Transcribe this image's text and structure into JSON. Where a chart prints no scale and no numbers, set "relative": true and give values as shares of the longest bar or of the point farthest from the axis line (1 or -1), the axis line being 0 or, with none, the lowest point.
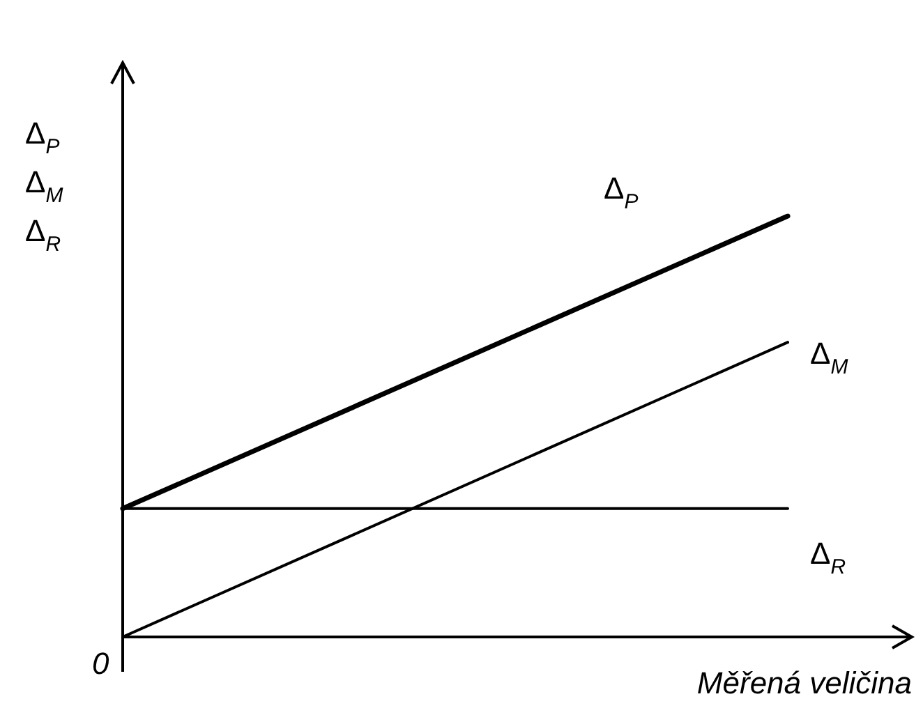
{
  "chart_data": {
    "type": "line",
    "relative": true,
    "categories": [
      null,
      null
    ],
    "xlabel": "Měřená veličina",
    "ylabel": "Δ$_{P}$\nΔ$_{M}$\nΔ$_{R}$",
    "annotations": [
      "0"
    ],
    "marker": "none",
    "series": [
      {
        "name": "Δ$_{P}$",
        "color": "#000000",
        "values": [
          0.305,
          1
        ]
      },
      {
        "name": "Δ$_{M}$",
        "color": "#000000",
        "values": [
          0,
          0.7
        ]
      },
      {
        "name": "Δ$_{R}$",
        "color": "#000000",
        "values": [
          0.305,
          0.305
        ]
      }
    ]
  }
}
